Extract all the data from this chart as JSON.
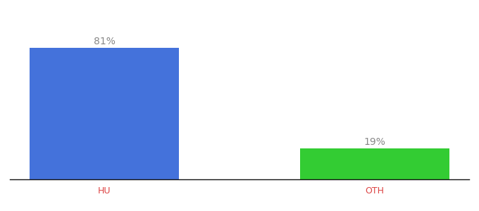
{
  "categories": [
    "HU",
    "OTH"
  ],
  "values": [
    81,
    19
  ],
  "bar_colors": [
    "#4472db",
    "#33cc33"
  ],
  "labels": [
    "81%",
    "19%"
  ],
  "label_color": "#888888",
  "background_color": "#ffffff",
  "label_fontsize": 10,
  "tick_fontsize": 9,
  "tick_color": "#dd4444",
  "ylim": [
    0,
    95
  ],
  "bar_width": 0.55,
  "xlim": [
    -0.35,
    1.35
  ]
}
